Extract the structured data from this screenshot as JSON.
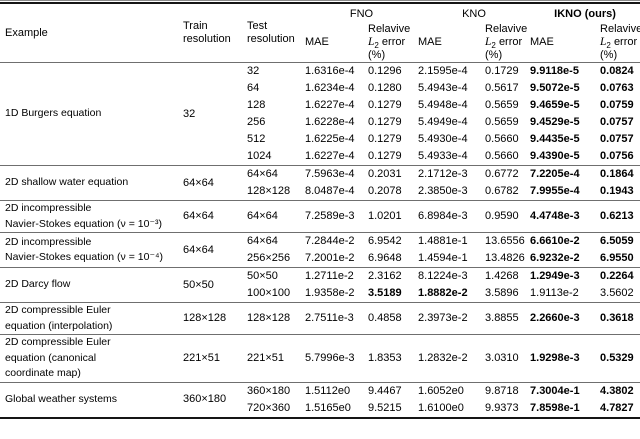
{
  "colors": {
    "text": "#000000",
    "rule_dark": "#151515",
    "rule_gray": "#6f6f6f"
  },
  "table": {
    "header": {
      "example": "Example",
      "train": "Train resolution",
      "test": "Test resolution",
      "groups": [
        "FNO",
        "KNO",
        "IKNO (ours)"
      ],
      "mae": "MAE",
      "rel_line1": "Relavive",
      "rel_l": "L",
      "rel_sub": "2",
      "rel_err": "error",
      "rel_pct": "(%)"
    },
    "value_column_names": [
      "fno-mae",
      "fno-rel-error",
      "kno-mae",
      "kno-rel-error",
      "ikno-mae",
      "ikno-rel-error"
    ],
    "rows": [
      {
        "example_lines": [
          "1D Burgers equation"
        ],
        "train": "32",
        "subrows": [
          {
            "test": "32",
            "values": [
              "1.6316e-4",
              "0.1296",
              "2.1595e-4",
              "0.1729",
              "9.9118e-5",
              "0.0824"
            ],
            "bold": [
              false,
              false,
              false,
              false,
              true,
              true
            ]
          },
          {
            "test": "64",
            "values": [
              "1.6234e-4",
              "0.1280",
              "5.4943e-4",
              "0.5617",
              "9.5072e-5",
              "0.0763"
            ],
            "bold": [
              false,
              false,
              false,
              false,
              true,
              true
            ]
          },
          {
            "test": "128",
            "values": [
              "1.6227e-4",
              "0.1279",
              "5.4948e-4",
              "0.5659",
              "9.4659e-5",
              "0.0759"
            ],
            "bold": [
              false,
              false,
              false,
              false,
              true,
              true
            ]
          },
          {
            "test": "256",
            "values": [
              "1.6228e-4",
              "0.1279",
              "5.4949e-4",
              "0.5659",
              "9.4529e-5",
              "0.0757"
            ],
            "bold": [
              false,
              false,
              false,
              false,
              true,
              true
            ]
          },
          {
            "test": "512",
            "values": [
              "1.6225e-4",
              "0.1279",
              "5.4930e-4",
              "0.5660",
              "9.4435e-5",
              "0.0757"
            ],
            "bold": [
              false,
              false,
              false,
              false,
              true,
              true
            ]
          },
          {
            "test": "1024",
            "values": [
              "1.6227e-4",
              "0.1279",
              "5.4933e-4",
              "0.5660",
              "9.4390e-5",
              "0.0756"
            ],
            "bold": [
              false,
              false,
              false,
              false,
              true,
              true
            ]
          }
        ]
      },
      {
        "example_lines": [
          "2D shallow water equation"
        ],
        "train": "64×64",
        "subrows": [
          {
            "test": "64×64",
            "values": [
              "7.5963e-4",
              "0.2031",
              "2.1712e-3",
              "0.6772",
              "7.2205e-4",
              "0.1864"
            ],
            "bold": [
              false,
              false,
              false,
              false,
              true,
              true
            ]
          },
          {
            "test": "128×128",
            "values": [
              "8.0487e-4",
              "0.2078",
              "2.3850e-3",
              "0.6782",
              "7.9955e-4",
              "0.1943"
            ],
            "bold": [
              false,
              false,
              false,
              false,
              true,
              true
            ]
          }
        ]
      },
      {
        "example_lines": [
          "2D incompressible",
          "Navier-Stokes equation (ν = 10⁻³)"
        ],
        "train": "64×64",
        "subrows": [
          {
            "test": "64×64",
            "values": [
              "7.2589e-3",
              "1.0201",
              "6.8984e-3",
              "0.9590",
              "4.4748e-3",
              "0.6213"
            ],
            "bold": [
              false,
              false,
              false,
              false,
              true,
              true
            ]
          }
        ]
      },
      {
        "example_lines": [
          "2D incompressible",
          "Navier-Stokes equation (ν = 10⁻⁴)"
        ],
        "train": "64×64",
        "subrows": [
          {
            "test": "64×64",
            "values": [
              "7.2844e-2",
              "6.9542",
              "1.4881e-1",
              "13.6556",
              "6.6610e-2",
              "6.5059"
            ],
            "bold": [
              false,
              false,
              false,
              false,
              true,
              true
            ]
          },
          {
            "test": "256×256",
            "values": [
              "7.2001e-2",
              "6.9648",
              "1.4594e-1",
              "13.4826",
              "6.9232e-2",
              "6.9550"
            ],
            "bold": [
              false,
              false,
              false,
              false,
              true,
              true
            ]
          }
        ]
      },
      {
        "example_lines": [
          "2D Darcy flow"
        ],
        "train": "50×50",
        "subrows": [
          {
            "test": "50×50",
            "values": [
              "1.2711e-2",
              "2.3162",
              "8.1224e-3",
              "1.4268",
              "1.2949e-3",
              "0.2264"
            ],
            "bold": [
              false,
              false,
              false,
              false,
              true,
              true
            ]
          },
          {
            "test": "100×100",
            "values": [
              "1.9358e-2",
              "3.5189",
              "1.8882e-2",
              "3.5896",
              "1.9113e-2",
              "3.5602"
            ],
            "bold": [
              false,
              true,
              true,
              false,
              false,
              false
            ]
          }
        ]
      },
      {
        "example_lines": [
          "2D compressible Euler",
          "equation (interpolation)"
        ],
        "train": "128×128",
        "subrows": [
          {
            "test": "128×128",
            "values": [
              "2.7511e-3",
              "0.4858",
              "2.3973e-2",
              "3.8855",
              "2.2660e-3",
              "0.3618"
            ],
            "bold": [
              false,
              false,
              false,
              false,
              true,
              true
            ]
          }
        ]
      },
      {
        "example_lines": [
          "2D compressible Euler",
          "equation (canonical",
          "coordinate map)"
        ],
        "train": "221×51",
        "subrows": [
          {
            "test": "221×51",
            "values": [
              "5.7996e-3",
              "1.8353",
              "1.2832e-2",
              "3.0310",
              "1.9298e-3",
              "0.5329"
            ],
            "bold": [
              false,
              false,
              false,
              false,
              true,
              true
            ]
          }
        ]
      },
      {
        "example_lines": [
          "Global weather systems"
        ],
        "train": "360×180",
        "subrows": [
          {
            "test": "360×180",
            "values": [
              "1.5112e0",
              "9.4467",
              "1.6052e0",
              "9.8718",
              "7.3004e-1",
              "4.3802"
            ],
            "bold": [
              false,
              false,
              false,
              false,
              true,
              true
            ]
          },
          {
            "test": "720×360",
            "values": [
              "1.5165e0",
              "9.5215",
              "1.6100e0",
              "9.9373",
              "7.8598e-1",
              "4.7827"
            ],
            "bold": [
              false,
              false,
              false,
              false,
              true,
              true
            ]
          }
        ]
      }
    ]
  }
}
